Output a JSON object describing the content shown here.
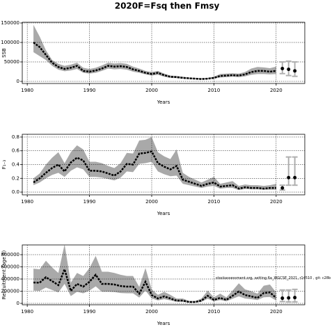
{
  "title": "2020F=Fsq then Fmsy",
  "chart_data": [
    {
      "type": "line",
      "ylabel": "SSB",
      "xlabel": "Years",
      "x": [
        1981,
        1982,
        1983,
        1984,
        1985,
        1986,
        1987,
        1988,
        1989,
        1990,
        1991,
        1992,
        1993,
        1994,
        1995,
        1996,
        1997,
        1998,
        1999,
        2000,
        2001,
        2002,
        2003,
        2004,
        2005,
        2006,
        2007,
        2008,
        2009,
        2010,
        2011,
        2012,
        2013,
        2014,
        2015,
        2016,
        2017,
        2018,
        2019,
        2020
      ],
      "values": [
        100000,
        88000,
        68000,
        48000,
        37000,
        32000,
        35000,
        40000,
        27000,
        25000,
        28000,
        33000,
        40000,
        38000,
        39000,
        37000,
        31000,
        27000,
        22000,
        19000,
        22000,
        16000,
        12000,
        11000,
        9000,
        8000,
        7000,
        6000,
        7000,
        9000,
        14000,
        15000,
        16000,
        15000,
        18000,
        24000,
        27000,
        27000,
        25000,
        27000
      ],
      "low": [
        75000,
        65000,
        55000,
        40000,
        30000,
        26000,
        28000,
        32000,
        22000,
        20000,
        22000,
        27000,
        33000,
        31000,
        32000,
        30000,
        25000,
        22000,
        18000,
        15000,
        17000,
        12000,
        9000,
        8500,
        7000,
        6000,
        5500,
        4800,
        5500,
        7000,
        10000,
        11000,
        12000,
        11000,
        13000,
        17000,
        19000,
        19000,
        18000,
        19000
      ],
      "high": [
        145000,
        115000,
        80000,
        55000,
        45000,
        40000,
        43000,
        48000,
        35000,
        32000,
        35000,
        41000,
        48000,
        46000,
        47000,
        45000,
        38000,
        33000,
        27000,
        24000,
        27000,
        20000,
        15000,
        14000,
        12000,
        10000,
        9000,
        8000,
        9000,
        12000,
        19000,
        20000,
        21000,
        20000,
        24000,
        33000,
        37000,
        36000,
        34000,
        38000
      ],
      "forecast": {
        "x": [
          2021,
          2022,
          2023
        ],
        "values": [
          33000,
          31000,
          27000
        ],
        "low": [
          20000,
          15000,
          13000
        ],
        "high": [
          50000,
          52000,
          50000
        ]
      },
      "xlim": [
        1979.2,
        2024.6
      ],
      "xticks": [
        1980,
        1990,
        2000,
        2010,
        2020
      ],
      "ylim": [
        -5400,
        151800
      ],
      "yticks": [
        0,
        50000,
        100000,
        150000
      ],
      "grid": true,
      "line_color": "#000000",
      "band_color": "#a9a9a9",
      "bar_color": "#b0b0b0"
    },
    {
      "type": "line",
      "ylabel": "F₁₋₃",
      "xlabel": "Years",
      "x": [
        1981,
        1982,
        1983,
        1984,
        1985,
        1986,
        1987,
        1988,
        1989,
        1990,
        1991,
        1992,
        1993,
        1994,
        1995,
        1996,
        1997,
        1998,
        1999,
        2000,
        2001,
        2002,
        2003,
        2004,
        2005,
        2006,
        2007,
        2008,
        2009,
        2010,
        2011,
        2012,
        2013,
        2014,
        2015,
        2016,
        2017,
        2018,
        2019,
        2020
      ],
      "values": [
        0.14,
        0.2,
        0.28,
        0.35,
        0.4,
        0.3,
        0.43,
        0.5,
        0.46,
        0.31,
        0.31,
        0.3,
        0.27,
        0.24,
        0.3,
        0.41,
        0.4,
        0.56,
        0.57,
        0.59,
        0.42,
        0.37,
        0.33,
        0.38,
        0.18,
        0.15,
        0.12,
        0.09,
        0.12,
        0.14,
        0.08,
        0.09,
        0.1,
        0.05,
        0.07,
        0.06,
        0.06,
        0.05,
        0.06,
        0.06
      ],
      "low": [
        0.1,
        0.14,
        0.2,
        0.25,
        0.28,
        0.22,
        0.31,
        0.36,
        0.33,
        0.22,
        0.22,
        0.21,
        0.19,
        0.17,
        0.21,
        0.3,
        0.29,
        0.41,
        0.42,
        0.44,
        0.3,
        0.26,
        0.23,
        0.24,
        0.12,
        0.1,
        0.08,
        0.06,
        0.08,
        0.09,
        0.05,
        0.06,
        0.06,
        0.03,
        0.045,
        0.04,
        0.04,
        0.035,
        0.035,
        0.035
      ],
      "high": [
        0.2,
        0.27,
        0.4,
        0.5,
        0.58,
        0.42,
        0.58,
        0.68,
        0.62,
        0.44,
        0.44,
        0.42,
        0.38,
        0.35,
        0.42,
        0.57,
        0.56,
        0.75,
        0.76,
        0.8,
        0.58,
        0.52,
        0.48,
        0.62,
        0.28,
        0.22,
        0.18,
        0.14,
        0.18,
        0.22,
        0.12,
        0.14,
        0.16,
        0.09,
        0.11,
        0.1,
        0.1,
        0.09,
        0.1,
        0.12
      ],
      "forecast": {
        "x": [
          2021,
          2022,
          2023
        ],
        "values": [
          0.06,
          0.21,
          0.21
        ],
        "low": [
          0.03,
          0.1,
          0.1
        ],
        "high": [
          0.1,
          0.51,
          0.51
        ]
      },
      "xlim": [
        1979.2,
        2024.6
      ],
      "xticks": [
        1980,
        1990,
        2000,
        2010,
        2020
      ],
      "ylim": [
        -0.04,
        0.84
      ],
      "yticks": [
        {
          "value": 0,
          "label": "0.0"
        },
        0.2,
        0.4,
        0.6,
        0.8
      ],
      "grid": true,
      "line_color": "#000000",
      "band_color": "#a9a9a9",
      "bar_color": "#b0b0b0"
    },
    {
      "type": "line",
      "ylabel": "Recruitment (age 0)",
      "xlabel": "Years",
      "annotation": "stockassessment.org, setting 6a_WGCSE_2021, r14510 , git: c28b",
      "x": [
        1981,
        1982,
        1983,
        1984,
        1985,
        1986,
        1987,
        1988,
        1989,
        1990,
        1991,
        1992,
        1993,
        1994,
        1995,
        1996,
        1997,
        1998,
        1999,
        2000,
        2001,
        2002,
        2003,
        2004,
        2005,
        2006,
        2007,
        2008,
        2009,
        2010,
        2011,
        2012,
        2013,
        2014,
        2015,
        2016,
        2017,
        2018,
        2019,
        2020
      ],
      "values": [
        343000,
        340000,
        430000,
        365000,
        300000,
        560000,
        205000,
        320000,
        275000,
        355000,
        470000,
        320000,
        320000,
        310000,
        285000,
        275000,
        275000,
        160000,
        355000,
        137000,
        80000,
        115000,
        80000,
        45000,
        45000,
        23000,
        23000,
        45000,
        125000,
        57000,
        90000,
        57000,
        125000,
        195000,
        137000,
        115000,
        90000,
        170000,
        180000,
        90000
      ],
      "low": [
        210000,
        205000,
        260000,
        220000,
        180000,
        320000,
        120000,
        190000,
        165000,
        210000,
        280000,
        190000,
        190000,
        185000,
        170000,
        165000,
        165000,
        95000,
        210000,
        80000,
        48000,
        68000,
        48000,
        26000,
        26000,
        13000,
        13000,
        26000,
        75000,
        34000,
        54000,
        34000,
        75000,
        115000,
        80000,
        68000,
        54000,
        100000,
        105000,
        45000
      ],
      "high": [
        570000,
        560000,
        700000,
        590000,
        500000,
        970000,
        340000,
        500000,
        450000,
        580000,
        780000,
        520000,
        520000,
        500000,
        470000,
        450000,
        450000,
        270000,
        580000,
        230000,
        140000,
        190000,
        140000,
        80000,
        80000,
        40000,
        40000,
        80000,
        210000,
        100000,
        160000,
        100000,
        210000,
        330000,
        230000,
        200000,
        160000,
        290000,
        310000,
        180000
      ],
      "forecast": {
        "x": [
          2021,
          2022,
          2023
        ],
        "values": [
          85000,
          90000,
          95000
        ],
        "low": [
          30000,
          25000,
          25000
        ],
        "high": [
          220000,
          220000,
          230000
        ]
      },
      "xlim": [
        1979.2,
        2024.6
      ],
      "xticks": [
        1980,
        1990,
        2000,
        2010,
        2020
      ],
      "ylim": [
        -23000,
        960000
      ],
      "yticks": [
        0,
        200000,
        400000,
        600000,
        800000
      ],
      "grid": true,
      "line_color": "#000000",
      "band_color": "#a9a9a9",
      "bar_color": "#b0b0b0"
    }
  ]
}
